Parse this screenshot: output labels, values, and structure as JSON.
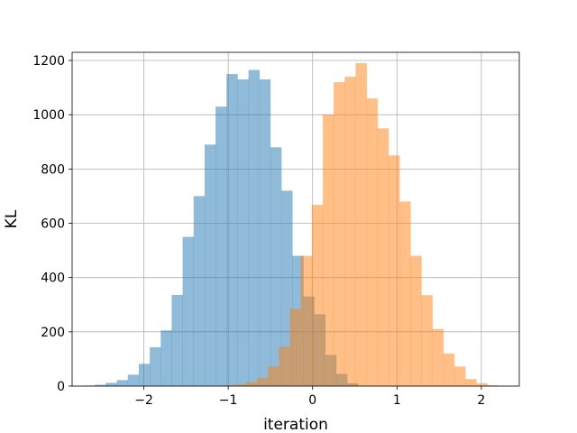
{
  "chart_data": {
    "type": "bar",
    "subtype": "histogram",
    "title": "",
    "xlabel": "iteration",
    "ylabel": "KL",
    "xlim": [
      -2.85,
      2.45
    ],
    "ylim": [
      0,
      1230
    ],
    "xticks": [
      -2,
      -1,
      0,
      1,
      2
    ],
    "xtick_labels": [
      "−2",
      "−1",
      "0",
      "1",
      "2"
    ],
    "yticks": [
      0,
      200,
      400,
      600,
      800,
      1000,
      1200
    ],
    "grid": true,
    "legend": "none",
    "series": [
      {
        "color": "#1f77b4",
        "opacity": 0.5,
        "bin_edges": [
          -2.71,
          -2.58,
          -2.45,
          -2.32,
          -2.19,
          -2.06,
          -1.93,
          -1.8,
          -1.67,
          -1.54,
          -1.41,
          -1.28,
          -1.15,
          -1.02,
          -0.89,
          -0.76,
          -0.63,
          -0.5,
          -0.37,
          -0.24,
          -0.11,
          0.02,
          0.15,
          0.28,
          0.41,
          0.54
        ],
        "counts": [
          2,
          5,
          12,
          22,
          42,
          82,
          143,
          205,
          336,
          550,
          700,
          890,
          1030,
          1150,
          1130,
          1165,
          1130,
          880,
          720,
          480,
          330,
          265,
          115,
          45,
          10
        ]
      },
      {
        "color": "#ff7f0e",
        "opacity": 0.5,
        "bin_edges": [
          -1.05,
          -0.92,
          -0.79,
          -0.66,
          -0.53,
          -0.4,
          -0.27,
          -0.14,
          -0.01,
          0.12,
          0.25,
          0.38,
          0.51,
          0.64,
          0.77,
          0.9,
          1.03,
          1.16,
          1.29,
          1.42,
          1.55,
          1.68,
          1.81,
          1.94,
          2.07,
          2.2
        ],
        "counts": [
          3,
          6,
          15,
          30,
          72,
          145,
          285,
          480,
          668,
          1000,
          1120,
          1140,
          1190,
          1060,
          950,
          850,
          680,
          480,
          335,
          210,
          120,
          72,
          26,
          10,
          3
        ]
      }
    ]
  }
}
